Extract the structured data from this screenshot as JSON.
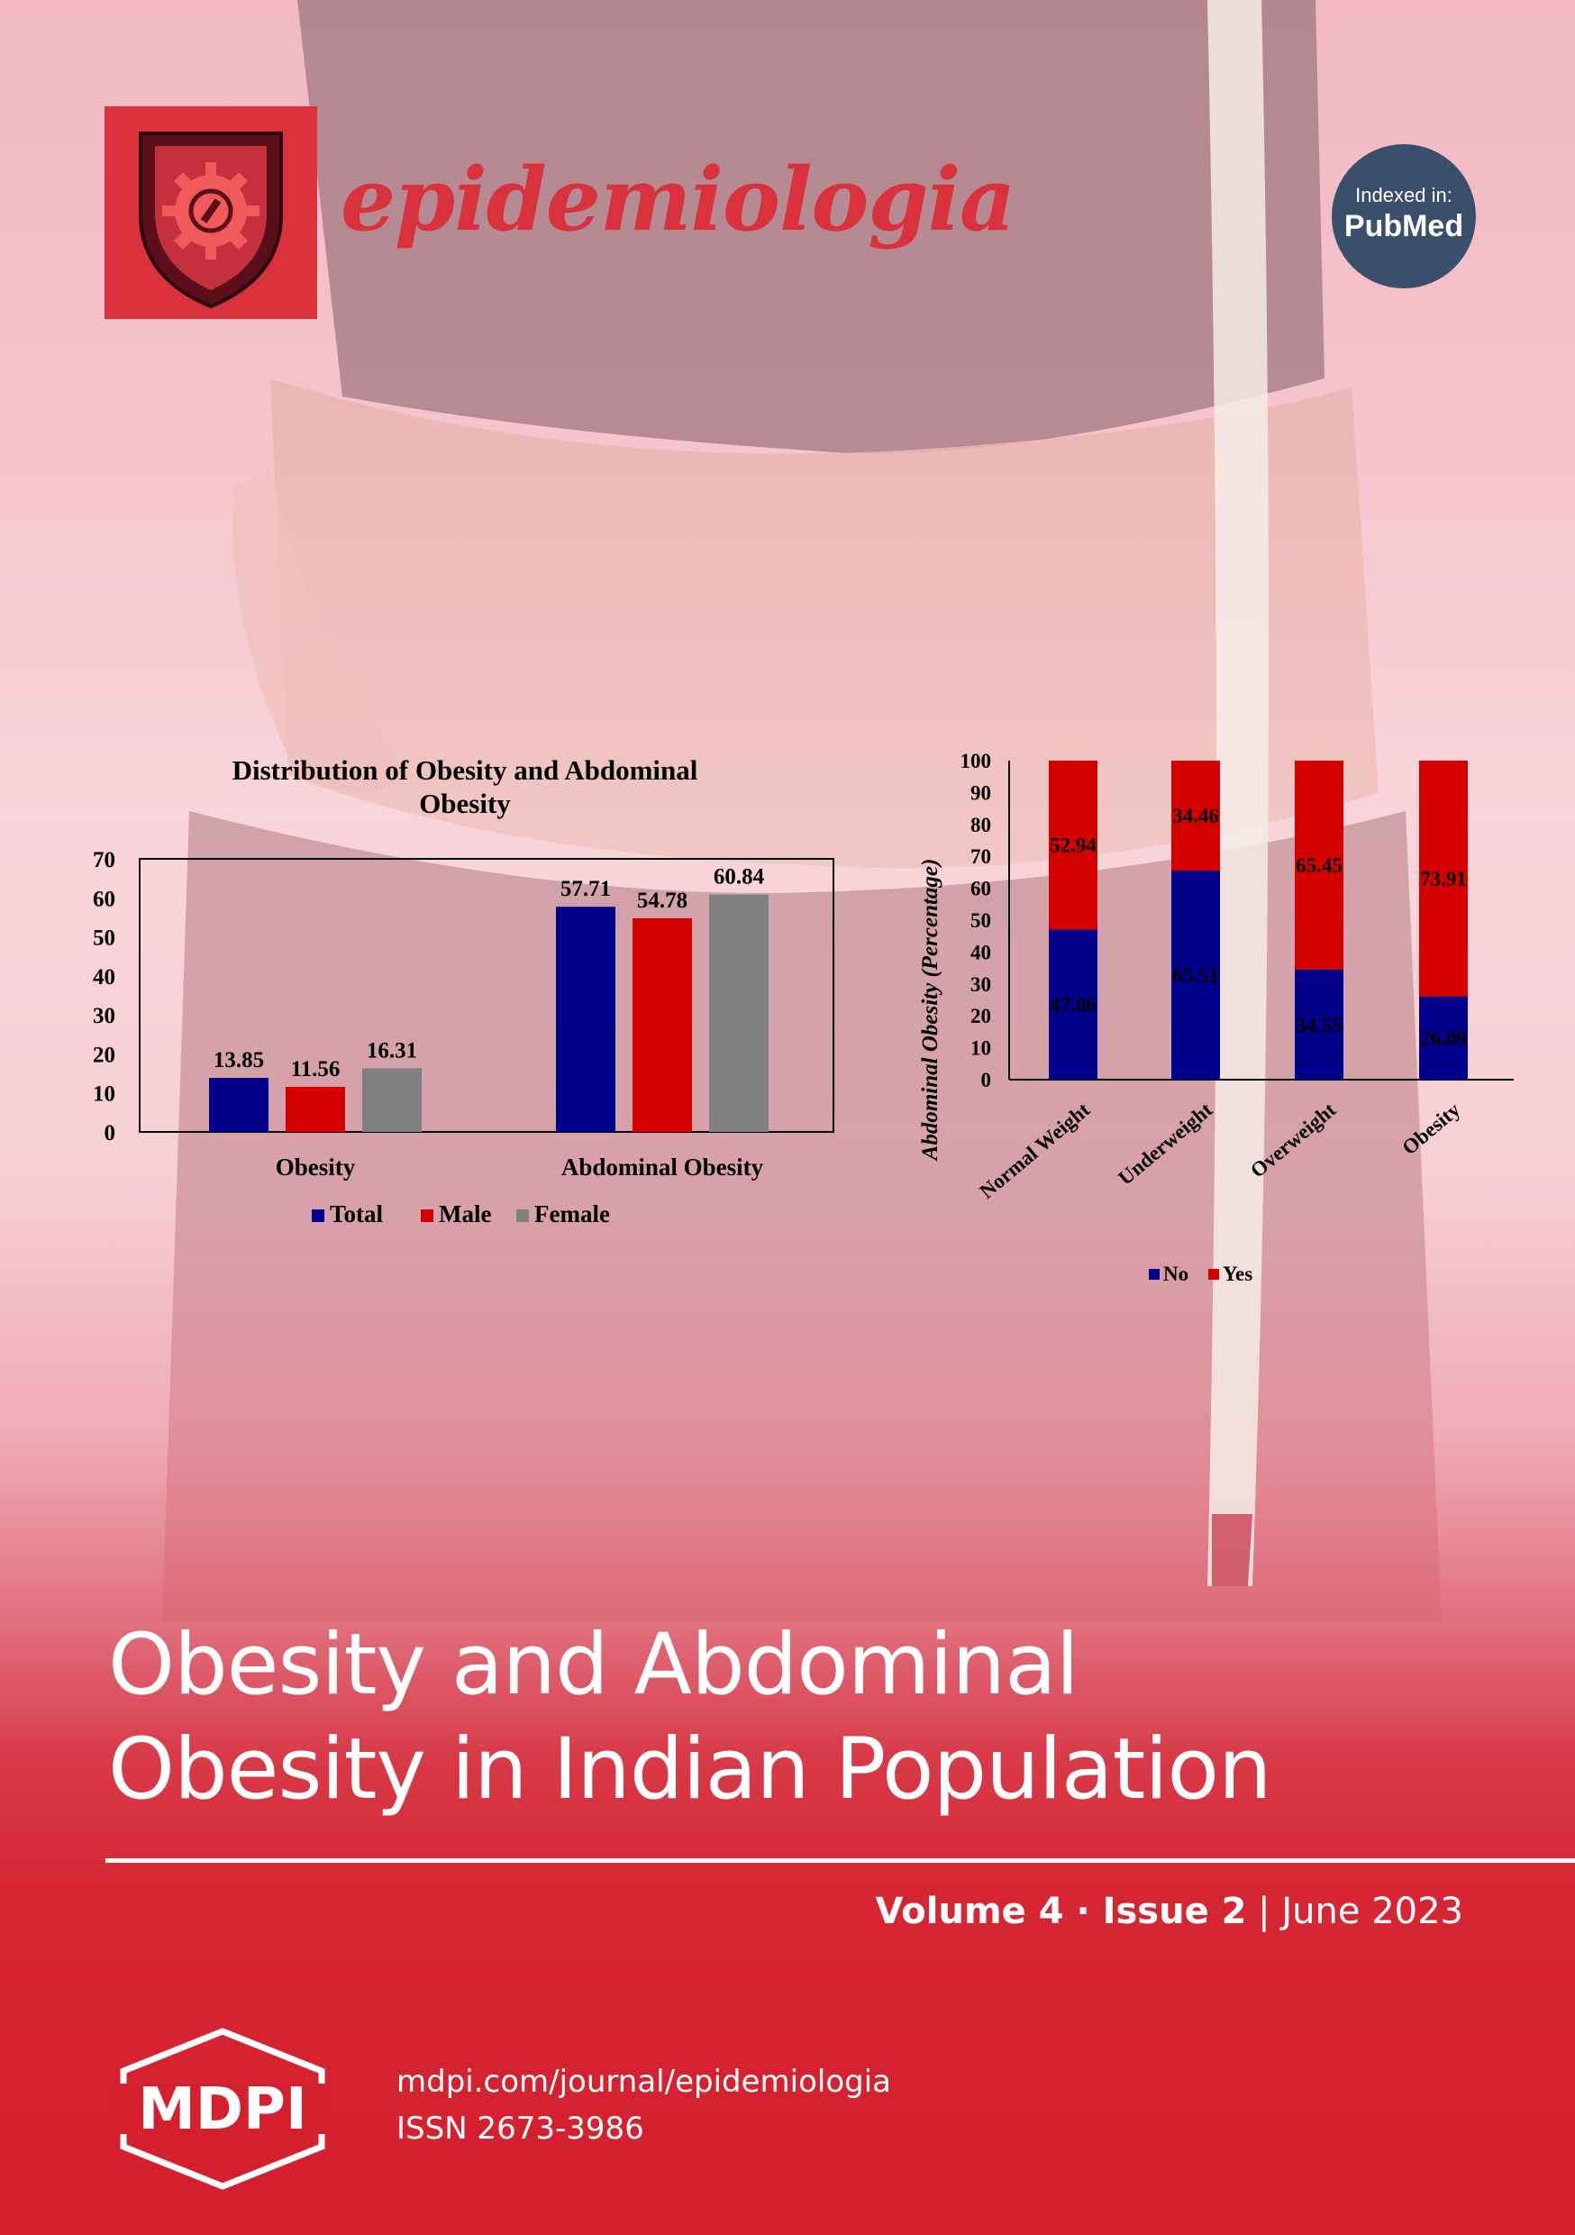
{
  "journal": {
    "name": "epidemiologia"
  },
  "badge": {
    "line1": "Indexed in:",
    "line2": "PubMed"
  },
  "charts": [
    {
      "type": "bar",
      "title": "Distribution of Obesity and Abdominal Obesity",
      "title_lines": [
        "Distribution of Obesity and Abdominal",
        "Obesity"
      ],
      "categories": [
        "Obesity",
        "Abdominal Obesity"
      ],
      "series": [
        {
          "name": "Total",
          "values": [
            13.85,
            57.71
          ],
          "color": "#00008b"
        },
        {
          "name": "Male",
          "values": [
            11.56,
            54.78
          ],
          "color": "#d40000"
        },
        {
          "name": "Female",
          "values": [
            16.31,
            60.84
          ],
          "color": "#808080"
        }
      ],
      "y_ticks": [
        "0",
        "10",
        "20",
        "30",
        "40",
        "50",
        "60",
        "70"
      ],
      "ylim": [
        0,
        70
      ],
      "legend_position": "bottom"
    },
    {
      "type": "bar",
      "stacked": true,
      "ylabel": "Abdominal Obesity (Percentage)",
      "categories": [
        "Normal Weight",
        "Underweight",
        "Overweight",
        "Obesity"
      ],
      "series": [
        {
          "name": "No",
          "values": [
            47.06,
            65.51,
            34.55,
            26.09
          ],
          "color": "#00008b"
        },
        {
          "name": "Yes",
          "values": [
            52.94,
            34.46,
            65.45,
            73.91
          ],
          "color": "#d40000"
        }
      ],
      "y_ticks": [
        "0",
        "10",
        "20",
        "30",
        "40",
        "50",
        "60",
        "70",
        "80",
        "90",
        "100"
      ],
      "ylim": [
        0,
        100
      ],
      "legend_position": "bottom"
    }
  ],
  "chart_data": [
    {
      "type": "bar",
      "title": "Distribution of Obesity and Abdominal Obesity",
      "categories": [
        "Obesity",
        "Abdominal Obesity"
      ],
      "series": [
        {
          "name": "Total",
          "values": [
            13.85,
            57.71
          ]
        },
        {
          "name": "Male",
          "values": [
            11.56,
            54.78
          ]
        },
        {
          "name": "Female",
          "values": [
            16.31,
            60.84
          ]
        }
      ],
      "ylim": [
        0,
        70
      ]
    },
    {
      "type": "bar",
      "stacked": true,
      "ylabel": "Abdominal Obesity (Percentage)",
      "categories": [
        "Normal Weight",
        "Underweight",
        "Overweight",
        "Obesity"
      ],
      "series": [
        {
          "name": "No",
          "values": [
            47.06,
            65.51,
            34.55,
            26.09
          ]
        },
        {
          "name": "Yes",
          "values": [
            52.94,
            34.46,
            65.45,
            73.91
          ]
        }
      ],
      "ylim": [
        0,
        100
      ]
    }
  ],
  "cover": {
    "title_line1": "Obesity and Abdominal",
    "title_line2": "Obesity in Indian Population",
    "volume": "Volume 4",
    "separator": " · ",
    "issue": "Issue 2",
    "pipe": " | ",
    "date": "June 2023"
  },
  "footer": {
    "publisher": "MDPI",
    "url": "mdpi.com/journal/epidemiologia",
    "issn": "ISSN 2673-3986"
  }
}
